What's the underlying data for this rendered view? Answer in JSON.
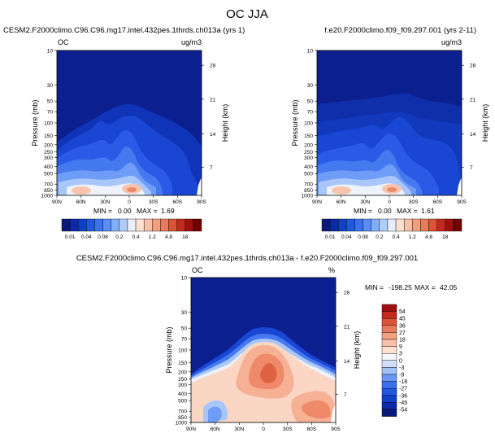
{
  "figure": {
    "title": "OC JJA"
  },
  "chart_data": [
    {
      "type": "heatmap",
      "id": "panel1",
      "title": "CESM2.F2000climo.C96.C96.mg17.intel.432pes.1thrds.ch013a (yrs 1)",
      "variable_label": "OC",
      "units_label": "ug/m3",
      "ylabel": "Pressure (mb)",
      "ylabel_right": "Height (km)",
      "x_ticks": [
        "90N",
        "60N",
        "30N",
        "0",
        "30S",
        "60S",
        "90S"
      ],
      "y_ticks": [
        10,
        30,
        50,
        70,
        100,
        150,
        200,
        250,
        300,
        400,
        500,
        700,
        850,
        1000
      ],
      "y_ticks_right": [
        28,
        21,
        14,
        7
      ],
      "ylim": [
        10,
        1000
      ],
      "xlim": [
        "90N",
        "90S"
      ],
      "stats": {
        "min_label": "MIN =",
        "min": "0.00",
        "max_label": "MAX =",
        "max": "1.69"
      },
      "colorbar": {
        "orientation": "horizontal",
        "labels": [
          "0.01",
          "0.04",
          "0.08",
          "0.2",
          "0.4",
          "1.2",
          "4.8",
          "18"
        ]
      }
    },
    {
      "type": "heatmap",
      "id": "panel2",
      "title": "f.e20.F2000climo.f09_f09.297.001 (yrs 2-11)",
      "variable_label": "",
      "units_label": "ug/m3",
      "ylabel": "Pressure (mb)",
      "ylabel_right": "Height (km)",
      "x_ticks": [
        "90N",
        "60N",
        "30N",
        "0",
        "30S",
        "60S",
        "90S"
      ],
      "y_ticks": [
        10,
        30,
        50,
        70,
        100,
        150,
        200,
        250,
        300,
        400,
        500,
        700,
        850,
        1000
      ],
      "y_ticks_right": [
        28,
        21,
        14,
        7
      ],
      "ylim": [
        10,
        1000
      ],
      "xlim": [
        "90N",
        "90S"
      ],
      "stats": {
        "min_label": "MIN =",
        "min": "0.00",
        "max_label": "MAX =",
        "max": "1.61"
      },
      "colorbar": {
        "orientation": "horizontal",
        "labels": [
          "0.01",
          "0.04",
          "0.08",
          "0.2",
          "0.4",
          "1.2",
          "4.8",
          "18"
        ]
      }
    },
    {
      "type": "heatmap",
      "id": "panel3",
      "title": "CESM2.F2000climo.C96.C96.mg17.intel.432pes.1thrds.ch013a - f.e20.F2000climo.f09_f09.297.001",
      "variable_label": "OC",
      "units_label": "%",
      "ylabel": "Pressure (mb)",
      "ylabel_right": "Height (km)",
      "x_ticks": [
        "90N",
        "60N",
        "30N",
        "0",
        "30S",
        "60S",
        "90S"
      ],
      "y_ticks": [
        10,
        30,
        50,
        70,
        100,
        150,
        200,
        250,
        300,
        400,
        500,
        700,
        850,
        1000
      ],
      "y_ticks_right": [
        28,
        21,
        14,
        7
      ],
      "ylim": [
        10,
        1000
      ],
      "xlim": [
        "90N",
        "90S"
      ],
      "stats": {
        "min_label": "MIN =",
        "min": "-198.25",
        "max_label": "MAX =",
        "max": "42.05"
      },
      "colorbar": {
        "orientation": "vertical",
        "labels": [
          "54",
          "45",
          "36",
          "27",
          "18",
          "9",
          "3",
          "0",
          "-3",
          "-9",
          "-18",
          "-27",
          "-36",
          "-45",
          "-54"
        ]
      }
    }
  ],
  "colors": {
    "abs_scale": [
      "#0a1a7a",
      "#0b2aa8",
      "#1040c8",
      "#2058e0",
      "#3a72ee",
      "#5a8cf4",
      "#80aef8",
      "#b0cdfa",
      "#e6eefa",
      "#fde0d0",
      "#f8c0a8",
      "#f2a080",
      "#ea7a5c",
      "#dc5438",
      "#c42a1c",
      "#a01010",
      "#700000"
    ],
    "diff_scale": [
      "#0a1a7a",
      "#0b2aa8",
      "#1040c8",
      "#2058e0",
      "#3a72ee",
      "#6a98f2",
      "#a0c0f6",
      "#d0e0fa",
      "#f4f6fc",
      "#fde0d0",
      "#f8c0a8",
      "#f2a080",
      "#ea7a5c",
      "#dc5438",
      "#c42a1c",
      "#a01010"
    ],
    "background": "#0b1f8f"
  }
}
